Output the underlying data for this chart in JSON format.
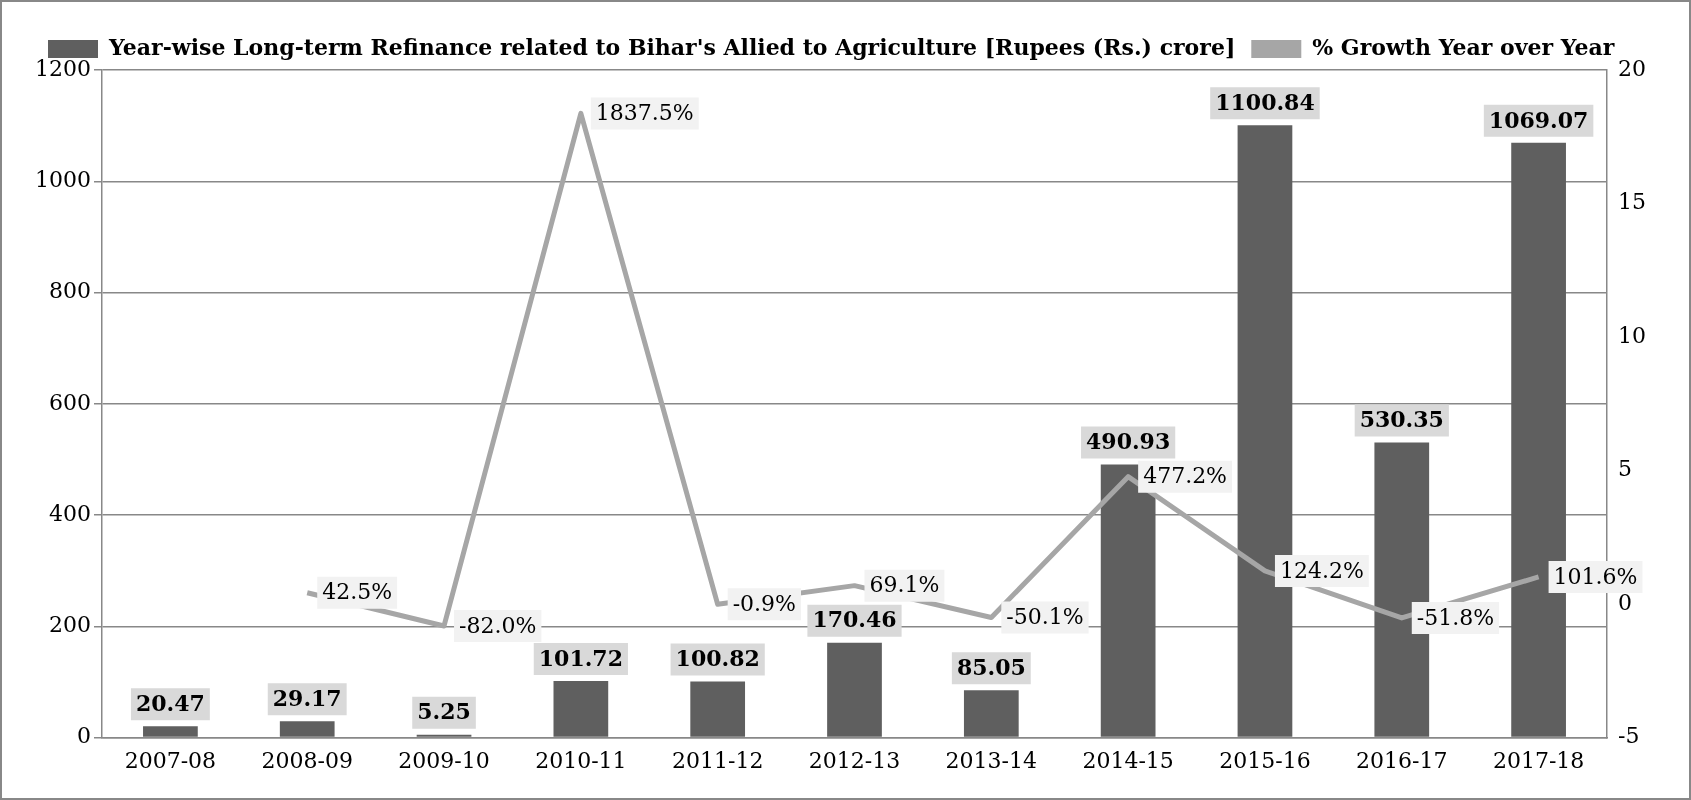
{
  "chart_data": {
    "type": "bar",
    "categories": [
      "2007-08",
      "2008-09",
      "2009-10",
      "2010-11",
      "2011-12",
      "2012-13",
      "2013-14",
      "2014-15",
      "2015-16",
      "2016-17",
      "2017-18"
    ],
    "series": [
      {
        "name": "Year-wise Long-term Refinance related to Bihar's Allied to Agriculture [Rupees (Rs.) crore]",
        "color": "#5f5f5f",
        "values": [
          20.47,
          29.17,
          5.25,
          101.72,
          100.82,
          170.46,
          85.05,
          490.93,
          1100.84,
          530.35,
          1069.07
        ],
        "data_labels": true
      },
      {
        "name": "% Growth Year over Year",
        "type": "line",
        "axis": "y2",
        "color": "#a6a6a6",
        "values": [
          null,
          0.425,
          -0.82,
          18.375,
          -0.009,
          0.691,
          -0.501,
          4.772,
          1.242,
          -0.518,
          1.016
        ],
        "value_labels": [
          null,
          "42.5%",
          "-82.0%",
          "1837.5%",
          "-0.9%",
          "69.1%",
          "-50.1%",
          "477.2%",
          "124.2%",
          "-51.8%",
          "101.6%"
        ]
      }
    ],
    "ylim": [
      0,
      1200
    ],
    "yticks": [
      0,
      200,
      400,
      600,
      800,
      1000,
      1200
    ],
    "y2lim": [
      -5,
      20
    ],
    "y2ticks": [
      -5,
      0,
      5,
      10,
      15,
      20
    ],
    "grid": "y",
    "legend": "top left",
    "marker": "none"
  }
}
